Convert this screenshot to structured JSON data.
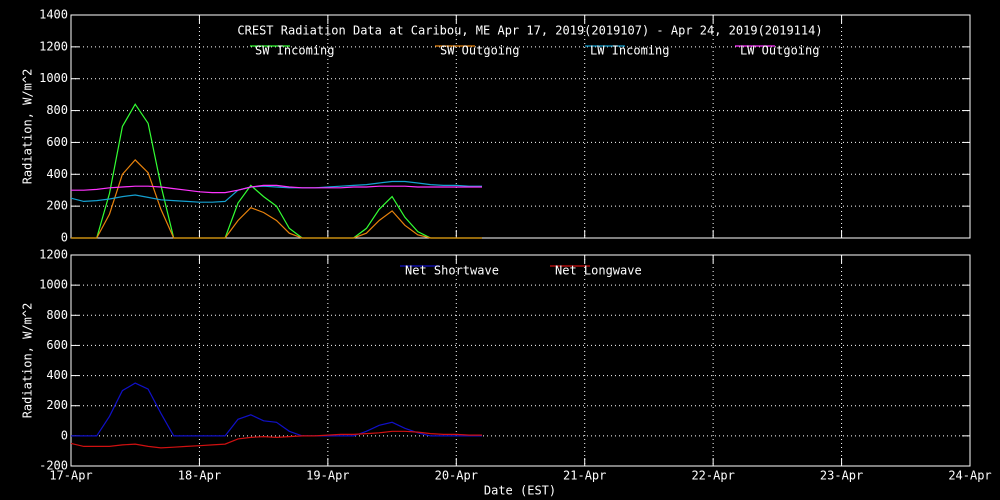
{
  "chart_data": [
    {
      "type": "line",
      "title": "CREST Radiation Data at Caribou, ME   Apr 17, 2019(2019107) - Apr 24, 2019(2019114)",
      "y_label": "Radiation, W/m^2",
      "x": [
        17.0,
        17.1,
        17.2,
        17.3,
        17.4,
        17.5,
        17.6,
        17.7,
        17.8,
        17.9,
        18.0,
        18.1,
        18.2,
        18.3,
        18.4,
        18.5,
        18.6,
        18.7,
        18.8,
        18.9,
        19.0,
        19.1,
        19.2,
        19.3,
        19.4,
        19.5,
        19.6,
        19.7,
        19.8,
        19.9,
        20.0,
        20.1,
        20.2
      ],
      "series": [
        {
          "name": "SW Incoming",
          "color": "#33ff33",
          "values": [
            0,
            0,
            0,
            280,
            700,
            840,
            720,
            330,
            0,
            0,
            0,
            0,
            0,
            220,
            330,
            260,
            200,
            60,
            0,
            0,
            0,
            0,
            0,
            60,
            180,
            260,
            130,
            40,
            0,
            0,
            0,
            0,
            0
          ]
        },
        {
          "name": "SW Outgoing",
          "color": "#e8820c",
          "values": [
            0,
            0,
            0,
            150,
            400,
            490,
            410,
            180,
            0,
            0,
            0,
            0,
            0,
            110,
            190,
            160,
            110,
            30,
            0,
            0,
            0,
            0,
            0,
            30,
            110,
            170,
            80,
            20,
            0,
            0,
            0,
            0,
            0
          ]
        },
        {
          "name": "LW Incoming",
          "color": "#14a0d0",
          "values": [
            250,
            230,
            235,
            245,
            260,
            270,
            255,
            240,
            235,
            230,
            225,
            225,
            230,
            300,
            320,
            325,
            320,
            315,
            315,
            315,
            320,
            325,
            330,
            335,
            345,
            355,
            355,
            345,
            335,
            330,
            330,
            325,
            325
          ]
        },
        {
          "name": "LW Outgoing",
          "color": "#ff33ff",
          "values": [
            300,
            300,
            305,
            315,
            320,
            325,
            325,
            320,
            310,
            300,
            290,
            285,
            285,
            300,
            320,
            330,
            330,
            320,
            315,
            315,
            315,
            315,
            320,
            320,
            325,
            325,
            325,
            320,
            320,
            320,
            320,
            320,
            320
          ]
        }
      ],
      "xlim": [
        17,
        24
      ],
      "xticks": [
        17,
        18,
        19,
        20,
        21,
        22,
        23,
        24
      ],
      "ylim": [
        0,
        1400
      ],
      "yticks": [
        0,
        200,
        400,
        600,
        800,
        1000,
        1200,
        1400
      ],
      "grid": true
    },
    {
      "type": "line",
      "y_label": "Radiation, W/m^2",
      "x_label": "Date (EST)",
      "x": [
        17.0,
        17.1,
        17.2,
        17.3,
        17.4,
        17.5,
        17.6,
        17.7,
        17.8,
        17.9,
        18.0,
        18.1,
        18.2,
        18.3,
        18.4,
        18.5,
        18.6,
        18.7,
        18.8,
        18.9,
        19.0,
        19.1,
        19.2,
        19.3,
        19.4,
        19.5,
        19.6,
        19.7,
        19.8,
        19.9,
        20.0,
        20.1,
        20.2
      ],
      "series": [
        {
          "name": "Net Shortwave",
          "color": "#1010c8",
          "values": [
            0,
            0,
            0,
            130,
            300,
            350,
            310,
            150,
            0,
            0,
            0,
            0,
            0,
            110,
            140,
            100,
            90,
            30,
            0,
            0,
            0,
            0,
            0,
            30,
            70,
            90,
            50,
            20,
            0,
            0,
            0,
            0,
            0
          ]
        },
        {
          "name": "Net Longwave",
          "color": "#d01010",
          "values": [
            -50,
            -70,
            -70,
            -70,
            -60,
            -55,
            -70,
            -80,
            -75,
            -70,
            -65,
            -60,
            -55,
            -20,
            -10,
            -5,
            -10,
            -5,
            0,
            0,
            5,
            10,
            10,
            15,
            20,
            30,
            30,
            25,
            15,
            10,
            10,
            5,
            5
          ]
        }
      ],
      "xlim": [
        17,
        24
      ],
      "xticks": [
        {
          "value": 17,
          "label": "17-Apr"
        },
        {
          "value": 18,
          "label": "18-Apr"
        },
        {
          "value": 19,
          "label": "19-Apr"
        },
        {
          "value": 20,
          "label": "20-Apr"
        },
        {
          "value": 21,
          "label": "21-Apr"
        },
        {
          "value": 22,
          "label": "22-Apr"
        },
        {
          "value": 23,
          "label": "23-Apr"
        },
        {
          "value": 24,
          "label": "24-Apr"
        }
      ],
      "ylim": [
        -200,
        1200
      ],
      "yticks": [
        -200,
        0,
        200,
        400,
        600,
        800,
        1000,
        1200
      ],
      "grid": true
    }
  ]
}
